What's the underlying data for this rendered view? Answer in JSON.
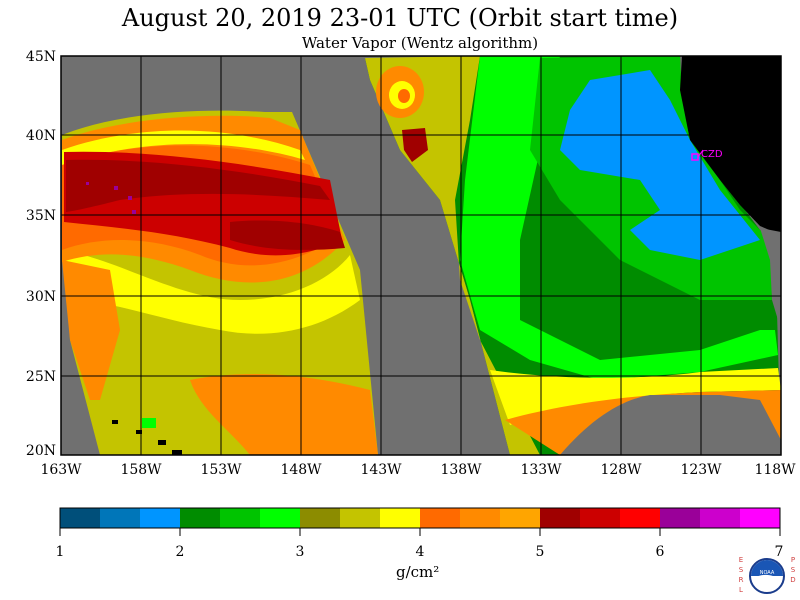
{
  "title": "August 20, 2019  23-01 UTC  (Orbit start time)",
  "subtitle": "Water Vapor (Wentz algorithm)",
  "lat_labels": [
    "45N",
    "40N",
    "35N",
    "30N",
    "25N",
    "20N"
  ],
  "lon_labels": [
    "163W",
    "158W",
    "153W",
    "148W",
    "143W",
    "138W",
    "133W",
    "128W",
    "123W",
    "118W"
  ],
  "station_label": "CZD",
  "colorbar": {
    "ticks": [
      "1",
      "2",
      "3",
      "4",
      "5",
      "6",
      "7"
    ],
    "unit": "g/cm²",
    "colors": [
      "#004f7a",
      "#0076b9",
      "#0095ff",
      "#008c00",
      "#00c400",
      "#00ff00",
      "#8c8c00",
      "#c4c400",
      "#ffff00",
      "#ff6a00",
      "#ff8a00",
      "#ffa500",
      "#a00000",
      "#cc0000",
      "#ff0000",
      "#9a0099",
      "#cc00cc",
      "#ff00ff"
    ]
  },
  "colors": {
    "nodata": "#707070",
    "land": "#000000",
    "station": "#ff00ff"
  },
  "logo": {
    "left_text": "ESRL",
    "right_text": "PSD",
    "center_text": "NOAA"
  }
}
